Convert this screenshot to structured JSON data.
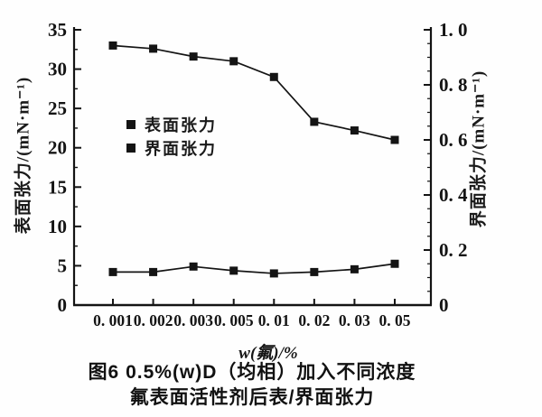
{
  "colors": {
    "ink": "#141414",
    "background": "#fefefe"
  },
  "chart_data": {
    "type": "line",
    "categories": [
      "0.001",
      "0.002",
      "0.003",
      "0.005",
      "0.01",
      "0.02",
      "0.03",
      "0.05"
    ],
    "x_tick_labels": [
      "0. 001",
      "0. 002",
      "0. 003",
      "0. 005",
      "0. 01",
      "0. 02",
      "0. 03",
      "0. 05"
    ],
    "series": [
      {
        "name": "表面张力",
        "axis": "left",
        "marker": "square",
        "values": [
          33.0,
          32.6,
          31.6,
          31.0,
          29.0,
          23.3,
          22.2,
          21.0
        ]
      },
      {
        "name": "界面张力",
        "axis": "right",
        "marker": "square",
        "values": [
          0.12,
          0.12,
          0.14,
          0.125,
          0.115,
          0.12,
          0.13,
          0.15
        ]
      }
    ],
    "xlabel": "w(氟)/%",
    "ylabel_left": "表面张力/(mN·m⁻¹)",
    "ylabel_right": "界面张力/(mN·m⁻¹)",
    "ylim_left": [
      0,
      35
    ],
    "ylim_right": [
      0,
      1.0
    ],
    "yticks_left": [
      "35",
      "30",
      "25",
      "20",
      "15",
      "10",
      "5",
      "0"
    ],
    "yticks_right": [
      "1. 0",
      "0. 8",
      "0. 6",
      "0. 4",
      "0. 2",
      "0"
    ],
    "grid": "off",
    "legend_position": "inside upper-left of plot",
    "caption_line1": "图6   0.5%(w)D（均相）加入不同浓度",
    "caption_line2": "氟表面活性剂后表/界面张力"
  }
}
